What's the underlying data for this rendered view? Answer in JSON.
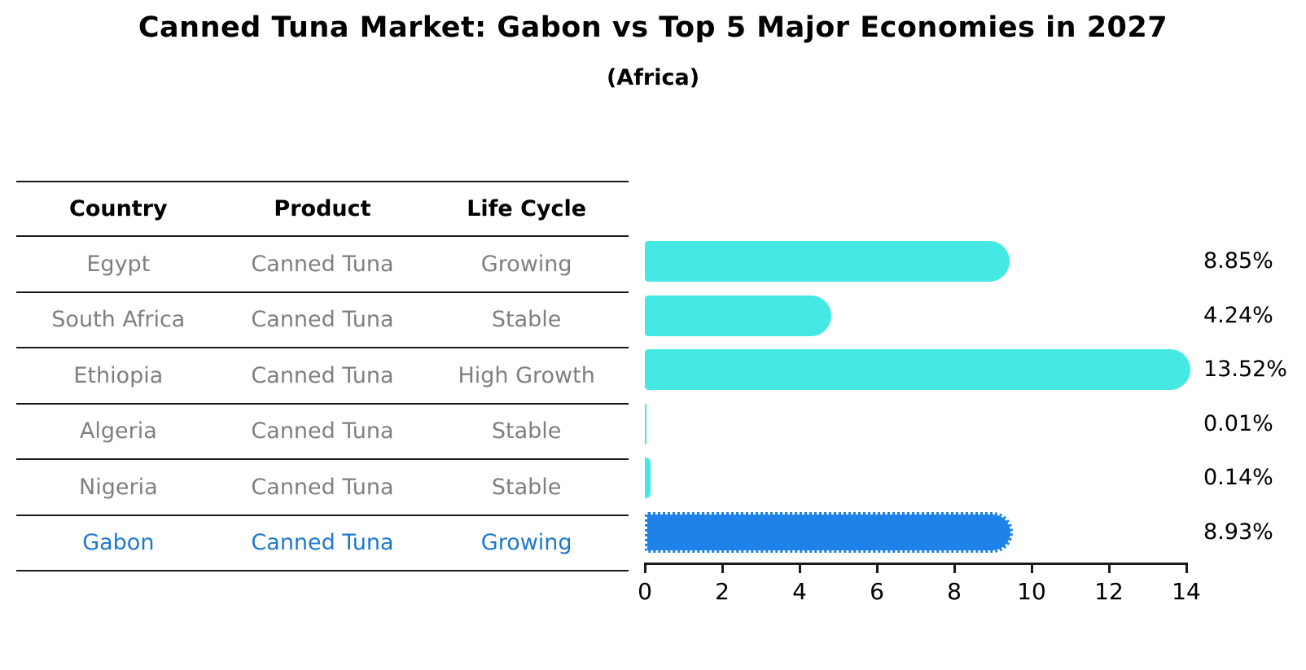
{
  "title": "Canned Tuna Market: Gabon vs Top 5 Major Economies in 2027",
  "subtitle": "(Africa)",
  "table": {
    "headers": [
      "Country",
      "Product",
      "Life Cycle"
    ],
    "rows": [
      {
        "country": "Egypt",
        "product": "Canned Tuna",
        "life_cycle": "Growing",
        "highlight": false
      },
      {
        "country": "South Africa",
        "product": "Canned Tuna",
        "life_cycle": "Stable",
        "highlight": false
      },
      {
        "country": "Ethiopia",
        "product": "Canned Tuna",
        "life_cycle": "High Growth",
        "highlight": false
      },
      {
        "country": "Algeria",
        "product": "Canned Tuna",
        "life_cycle": "Stable",
        "highlight": false
      },
      {
        "country": "Nigeria",
        "product": "Canned Tuna",
        "life_cycle": "Stable",
        "highlight": false
      },
      {
        "country": "Gabon",
        "product": "Canned Tuna",
        "life_cycle": "Growing",
        "highlight": true
      }
    ]
  },
  "chart_data": {
    "type": "bar",
    "orientation": "horizontal",
    "title": "Canned Tuna Market: Gabon vs Top 5 Major Economies in 2027",
    "subtitle": "(Africa)",
    "categories": [
      "Egypt",
      "South Africa",
      "Ethiopia",
      "Algeria",
      "Nigeria",
      "Gabon"
    ],
    "values": [
      8.85,
      4.24,
      13.52,
      0.01,
      0.14,
      8.93
    ],
    "value_labels": [
      "8.85%",
      "4.24%",
      "13.52%",
      "0.01%",
      "0.14%",
      "8.93%"
    ],
    "xlabel": "",
    "ylabel": "",
    "xlim": [
      0,
      14
    ],
    "x_ticks": [
      0,
      2,
      4,
      6,
      8,
      10,
      12,
      14
    ],
    "grid": false,
    "legend": false,
    "highlight_index": 5,
    "colors": {
      "bar": "#45E8E3",
      "highlight_bar": "#1E82E8",
      "highlight_text": "#1E78D0",
      "row_text": "#7f7f7f",
      "axis_line": "#1a1a1a"
    }
  }
}
